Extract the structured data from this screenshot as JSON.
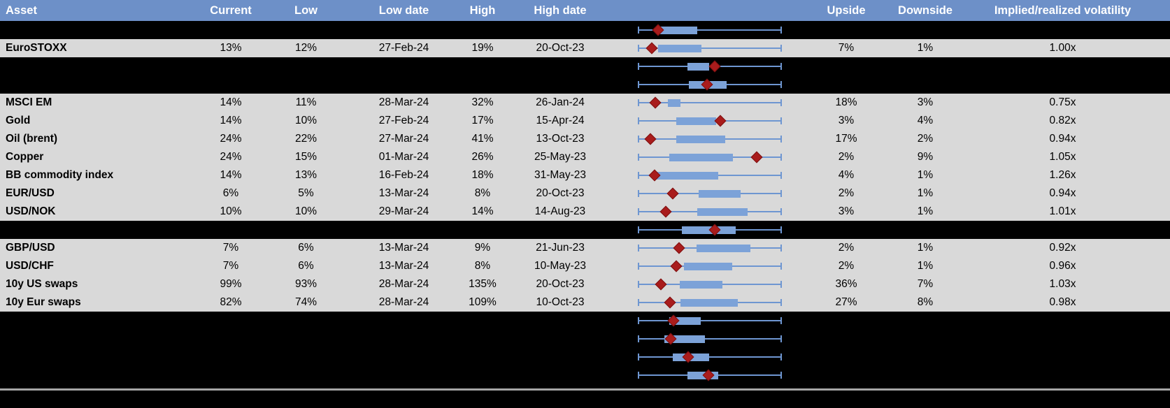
{
  "header": {
    "columns": [
      "Asset",
      "Current",
      "Low",
      "Low date",
      "High",
      "High date",
      "",
      "Upside",
      "Downside",
      "Implied/realized volatility"
    ]
  },
  "colors": {
    "header_bg": "#6d90c8",
    "header_text": "#ffffff",
    "row_grey": "#d9d9d9",
    "row_black": "#000000",
    "whisker": "#6e96d1",
    "box_fill": "#7ca2d8",
    "diamond": "#a91c1c",
    "divider": "#a6a6a6"
  },
  "rows": [
    {
      "type": "hidden",
      "box": {
        "q1": 0.152,
        "q3": 0.411,
        "d": 0.139
      }
    },
    {
      "type": "data",
      "asset": "EuroSTOXX",
      "current": "13%",
      "low": "12%",
      "low_date": "27-Feb-24",
      "high": "19%",
      "high_date": "20-Oct-23",
      "upside": "7%",
      "downside": "1%",
      "implied_realized": "1.00x",
      "box": {
        "q1": 0.139,
        "q3": 0.443,
        "d": 0.099
      }
    },
    {
      "type": "hidden",
      "box": {
        "q1": 0.343,
        "q3": 0.495,
        "d": 0.535
      }
    },
    {
      "type": "hidden",
      "box": {
        "q1": 0.354,
        "q3": 0.617,
        "d": 0.48
      }
    },
    {
      "type": "data",
      "asset": "MSCI EM",
      "current": "14%",
      "low": "11%",
      "low_date": "28-Mar-24",
      "high": "32%",
      "high_date": "26-Jan-24",
      "upside": "18%",
      "downside": "3%",
      "implied_realized": "0.75x",
      "box": {
        "q1": 0.207,
        "q3": 0.295,
        "d": 0.123
      }
    },
    {
      "type": "data",
      "asset": "Gold",
      "current": "14%",
      "low": "10%",
      "low_date": "27-Feb-24",
      "high": "17%",
      "high_date": "15-Apr-24",
      "upside": "3%",
      "downside": "4%",
      "implied_realized": "0.82x",
      "box": {
        "q1": 0.265,
        "q3": 0.545,
        "d": 0.573
      }
    },
    {
      "type": "data",
      "asset": "Oil (brent)",
      "current": "24%",
      "low": "22%",
      "low_date": "27-Mar-24",
      "high": "41%",
      "high_date": "13-Oct-23",
      "upside": "17%",
      "downside": "2%",
      "implied_realized": "0.94x",
      "box": {
        "q1": 0.265,
        "q3": 0.605,
        "d": 0.087
      }
    },
    {
      "type": "data",
      "asset": "Copper",
      "current": "24%",
      "low": "15%",
      "low_date": "01-Mar-24",
      "high": "26%",
      "high_date": "25-May-23",
      "upside": "2%",
      "downside": "9%",
      "implied_realized": "1.05x",
      "box": {
        "q1": 0.217,
        "q3": 0.66,
        "d": 0.825
      }
    },
    {
      "type": "data",
      "asset": "BB commodity index",
      "current": "14%",
      "low": "13%",
      "low_date": "16-Feb-24",
      "high": "18%",
      "high_date": "31-May-23",
      "upside": "4%",
      "downside": "1%",
      "implied_realized": "1.26x",
      "box": {
        "q1": 0.13,
        "q3": 0.558,
        "d": 0.118
      }
    },
    {
      "type": "data",
      "asset": "EUR/USD",
      "current": "6%",
      "low": "5%",
      "low_date": "13-Mar-24",
      "high": "8%",
      "high_date": "20-Oct-23",
      "upside": "2%",
      "downside": "1%",
      "implied_realized": "0.94x",
      "box": {
        "q1": 0.421,
        "q3": 0.712,
        "d": 0.244
      }
    },
    {
      "type": "data",
      "asset": "USD/NOK",
      "current": "10%",
      "low": "10%",
      "low_date": "29-Mar-24",
      "high": "14%",
      "high_date": "14-Aug-23",
      "upside": "3%",
      "downside": "1%",
      "implied_realized": "1.01x",
      "box": {
        "q1": 0.414,
        "q3": 0.761,
        "d": 0.194
      }
    },
    {
      "type": "hidden",
      "box": {
        "q1": 0.306,
        "q3": 0.678,
        "d": 0.533
      }
    },
    {
      "type": "data",
      "asset": "GBP/USD",
      "current": "7%",
      "low": "6%",
      "low_date": "13-Mar-24",
      "high": "9%",
      "high_date": "21-Jun-23",
      "upside": "2%",
      "downside": "1%",
      "implied_realized": "0.92x",
      "box": {
        "q1": 0.408,
        "q3": 0.783,
        "d": 0.286
      }
    },
    {
      "type": "data",
      "asset": "USD/CHF",
      "current": "7%",
      "low": "6%",
      "low_date": "13-Mar-24",
      "high": "8%",
      "high_date": "10-May-23",
      "upside": "2%",
      "downside": "1%",
      "implied_realized": "0.96x",
      "box": {
        "q1": 0.319,
        "q3": 0.654,
        "d": 0.265
      }
    },
    {
      "type": "data",
      "asset": "10y US swaps",
      "current": "99%",
      "low": "93%",
      "low_date": "28-Mar-24",
      "high": "135%",
      "high_date": "20-Oct-23",
      "upside": "36%",
      "downside": "7%",
      "implied_realized": "1.03x",
      "box": {
        "q1": 0.293,
        "q3": 0.586,
        "d": 0.162
      }
    },
    {
      "type": "data",
      "asset": "10y Eur swaps",
      "current": "82%",
      "low": "74%",
      "low_date": "28-Mar-24",
      "high": "109%",
      "high_date": "10-Oct-23",
      "upside": "27%",
      "downside": "8%",
      "implied_realized": "0.98x",
      "box": {
        "q1": 0.298,
        "q3": 0.696,
        "d": 0.225
      }
    },
    {
      "type": "hidden",
      "box": {
        "q1": 0.22,
        "q3": 0.435,
        "d": 0.246
      }
    },
    {
      "type": "hidden",
      "box": {
        "q1": 0.184,
        "q3": 0.467,
        "d": 0.23
      }
    },
    {
      "type": "hidden",
      "box": {
        "q1": 0.241,
        "q3": 0.497,
        "d": 0.35
      }
    },
    {
      "type": "hidden",
      "box": {
        "q1": 0.346,
        "q3": 0.557,
        "d": 0.492
      }
    }
  ]
}
